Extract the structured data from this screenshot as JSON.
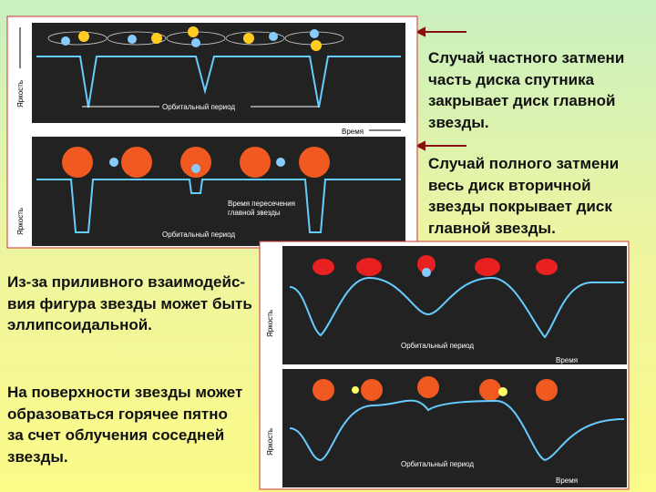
{
  "captions": {
    "partial": [
      "Случай частного затмени",
      "часть диска спутника",
      "закрывает  диск главной",
      "звезды."
    ],
    "total": [
      "Случай полного затмени",
      "весь диск вторичной",
      "звезды покрывает диск",
      "главной звезды."
    ],
    "tidal": [
      "Из-за приливного взаимодейс-",
      "вия фигура звезды может быть",
      "эллипсоидальной."
    ],
    "hotspot": [
      "На поверхности звезды может",
      "образоваться горячее пятно",
      "за счет облучения соседней",
      "звезды."
    ]
  },
  "figure_labels": {
    "brightness": "Яркость",
    "orbital_period": "Орбитальный период",
    "time": "Время",
    "crossing": [
      "Время пересечения",
      "главной звезды"
    ]
  }
}
